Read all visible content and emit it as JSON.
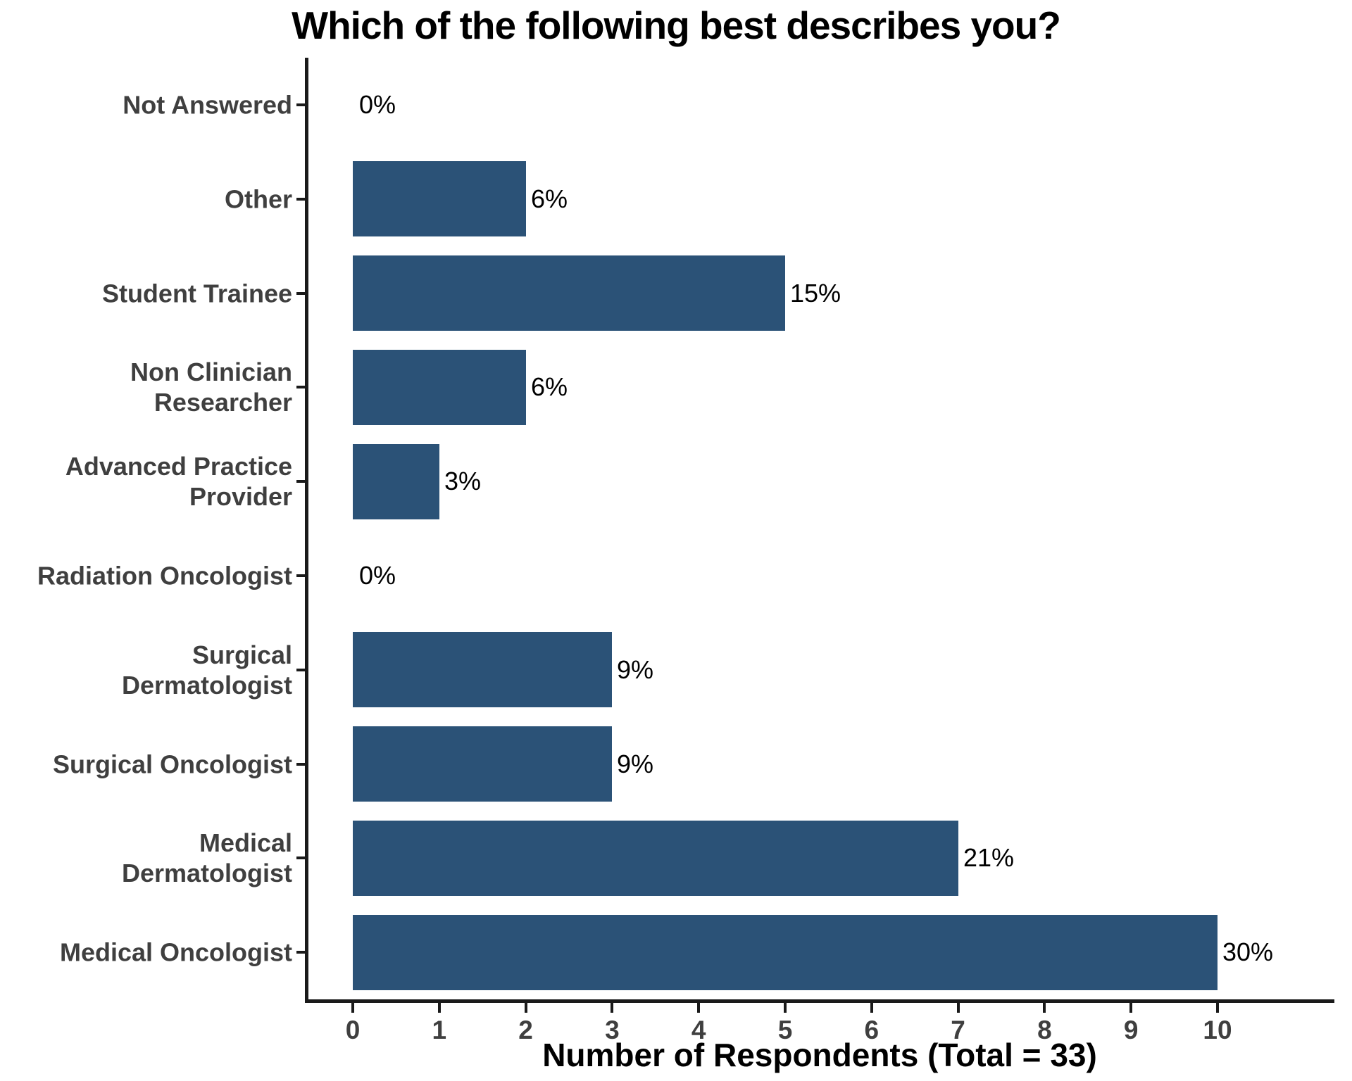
{
  "title": "Which of the following best describes you?",
  "x_axis_title": "Number of Respondents (Total = 33)",
  "colors": {
    "bar": "#2B5277",
    "axis_line": "#1A1A1A",
    "tick_label": "#3F3F3F",
    "category_label": "#3F3F3F",
    "value_label": "#000000",
    "background": "#FFFFFF"
  },
  "chart_data": {
    "type": "bar",
    "orientation": "horizontal",
    "title": "Which of the following best describes you?",
    "xlabel": "Number of Respondents (Total = 33)",
    "ylabel": "",
    "total_respondents": 33,
    "grid": false,
    "legend": "none",
    "xlim": [
      0,
      11.3
    ],
    "xticks": [
      0,
      1,
      2,
      3,
      4,
      5,
      6,
      7,
      8,
      9,
      10
    ],
    "categories_top_to_bottom": [
      "Not Answered",
      "Other",
      "Student Trainee",
      "Non Clinician\nResearcher",
      "Advanced Practice\nProvider",
      "Radiation Oncologist",
      "Surgical\nDermatologist",
      "Surgical Oncologist",
      "Medical\nDermatologist",
      "Medical Oncologist"
    ],
    "values": [
      0,
      2,
      5,
      2,
      1,
      0,
      3,
      3,
      7,
      10
    ],
    "percent_labels": [
      "0%",
      "6%",
      "15%",
      "6%",
      "3%",
      "0%",
      "9%",
      "9%",
      "21%",
      "30%"
    ],
    "bar_color": "#2B5277"
  }
}
